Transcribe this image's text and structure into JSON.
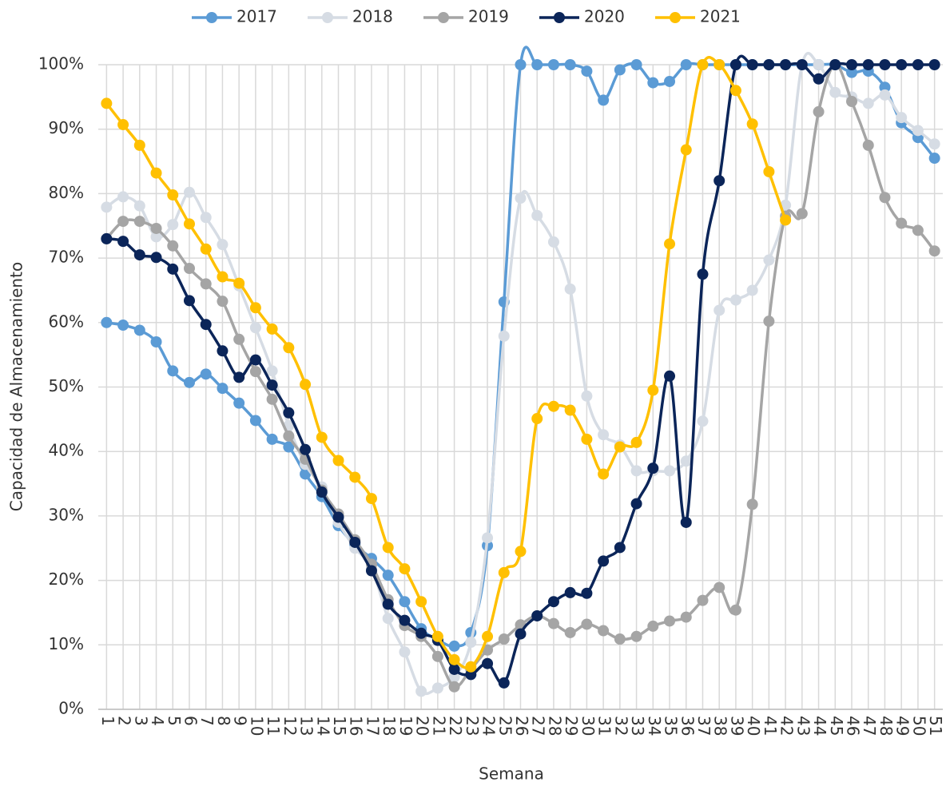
{
  "chart_data": {
    "type": "line",
    "xlabel": "Semana",
    "ylabel": "Capacidad de Almacenamiento",
    "categories": [
      "1",
      "2",
      "3",
      "4",
      "5",
      "6",
      "7",
      "8",
      "9",
      "10",
      "11",
      "12",
      "13",
      "14",
      "15",
      "16",
      "17",
      "18",
      "19",
      "20",
      "21",
      "22",
      "23",
      "24",
      "25",
      "26",
      "27",
      "28",
      "29",
      "30",
      "31",
      "32",
      "33",
      "34",
      "35",
      "36",
      "37",
      "38",
      "39",
      "40",
      "41",
      "42",
      "43",
      "44",
      "45",
      "46",
      "47",
      "48",
      "49",
      "50",
      "51"
    ],
    "ylim": [
      0,
      100
    ],
    "yticks": [
      {
        "value": 0,
        "label": "0%"
      },
      {
        "value": 10,
        "label": "10%"
      },
      {
        "value": 20,
        "label": "20%"
      },
      {
        "value": 30,
        "label": "30%"
      },
      {
        "value": 40,
        "label": "40%"
      },
      {
        "value": 50,
        "label": "50%"
      },
      {
        "value": 60,
        "label": "60%"
      },
      {
        "value": 70,
        "label": "70%"
      },
      {
        "value": 80,
        "label": "80%"
      },
      {
        "value": 90,
        "label": "90%"
      },
      {
        "value": 100,
        "label": "100%"
      }
    ],
    "grid": true,
    "legend": "top",
    "series": [
      {
        "name": "2017",
        "color": "#5b9bd5",
        "values": [
          60,
          59.6,
          58.8,
          57,
          52.5,
          50.7,
          52,
          49.8,
          47.5,
          44.8,
          41.9,
          40.7,
          36.5,
          33,
          28.5,
          25.5,
          23.4,
          20.8,
          16.7,
          12.5,
          10.8,
          9.8,
          11.9,
          25.4,
          63.2,
          100,
          100,
          100,
          100,
          99,
          94.5,
          99.2,
          100,
          97.2,
          97.4,
          100,
          100,
          100,
          100,
          100,
          100,
          100,
          100,
          100,
          100,
          98.8,
          99,
          96.5,
          91,
          88.7,
          85.5
        ]
      },
      {
        "name": "2018",
        "color": "#d6dce4",
        "values": [
          77.9,
          79.5,
          78.1,
          73.3,
          75.2,
          80.2,
          76.3,
          72.1,
          65.7,
          59.2,
          52.5,
          44,
          38,
          34.5,
          29,
          25,
          22,
          14.1,
          8.9,
          2.8,
          3.3,
          5,
          10.4,
          26.6,
          57.9,
          79.3,
          76.6,
          72.5,
          65.2,
          48.6,
          42.6,
          41,
          37,
          37,
          37,
          38.5,
          44.7,
          61.9,
          63.5,
          65,
          69.7,
          78.2,
          100,
          100,
          95.7,
          95,
          94,
          95.3,
          91.8,
          89.8,
          87.7
        ]
      },
      {
        "name": "2019",
        "color": "#a5a5a5",
        "values": [
          73,
          75.7,
          75.7,
          74.6,
          71.9,
          68.4,
          66,
          63.3,
          57.4,
          52.4,
          48.1,
          42.4,
          38.8,
          34,
          30.3,
          26.3,
          22.5,
          17,
          13,
          11.3,
          8.2,
          3.5,
          6.2,
          9.2,
          10.9,
          13.1,
          14.5,
          13.3,
          11.9,
          13.2,
          12.2,
          10.9,
          11.3,
          12.9,
          13.7,
          14.3,
          16.9,
          18.9,
          15.4,
          31.8,
          60.2,
          76.5,
          76.9,
          92.7,
          100,
          94.3,
          87.5,
          79.4,
          75.4,
          74.3,
          71.1
        ]
      },
      {
        "name": "2020",
        "color": "#0b2559",
        "values": [
          73,
          72.6,
          70.5,
          70.1,
          68.3,
          63.4,
          59.7,
          55.6,
          51.5,
          54.2,
          50.3,
          46,
          40.3,
          33.7,
          29.8,
          25.9,
          21.5,
          16.3,
          13.8,
          11.8,
          10.7,
          6.2,
          5.4,
          7.1,
          4.1,
          11.7,
          14.5,
          16.7,
          18.1,
          18,
          23,
          25.1,
          31.9,
          37.4,
          51.7,
          29,
          67.5,
          82,
          100,
          100,
          100,
          100,
          100,
          97.8,
          100,
          100,
          100,
          100,
          100,
          100,
          100
        ]
      },
      {
        "name": "2021",
        "color": "#ffc000",
        "values": [
          94,
          90.7,
          87.5,
          83.2,
          79.8,
          75.3,
          71.4,
          67.1,
          66.1,
          62.3,
          59,
          56.1,
          50.4,
          42.2,
          38.6,
          36,
          32.7,
          25.1,
          21.8,
          16.7,
          11.3,
          7.7,
          6.6,
          11.3,
          21.2,
          24.5,
          45.1,
          47,
          46.4,
          41.9,
          36.5,
          40.7,
          41.4,
          49.5,
          72.2,
          86.8,
          100,
          100,
          96,
          90.8,
          83.4,
          75.9,
          null,
          null,
          null,
          null,
          null,
          null,
          null,
          null,
          null
        ]
      }
    ]
  }
}
